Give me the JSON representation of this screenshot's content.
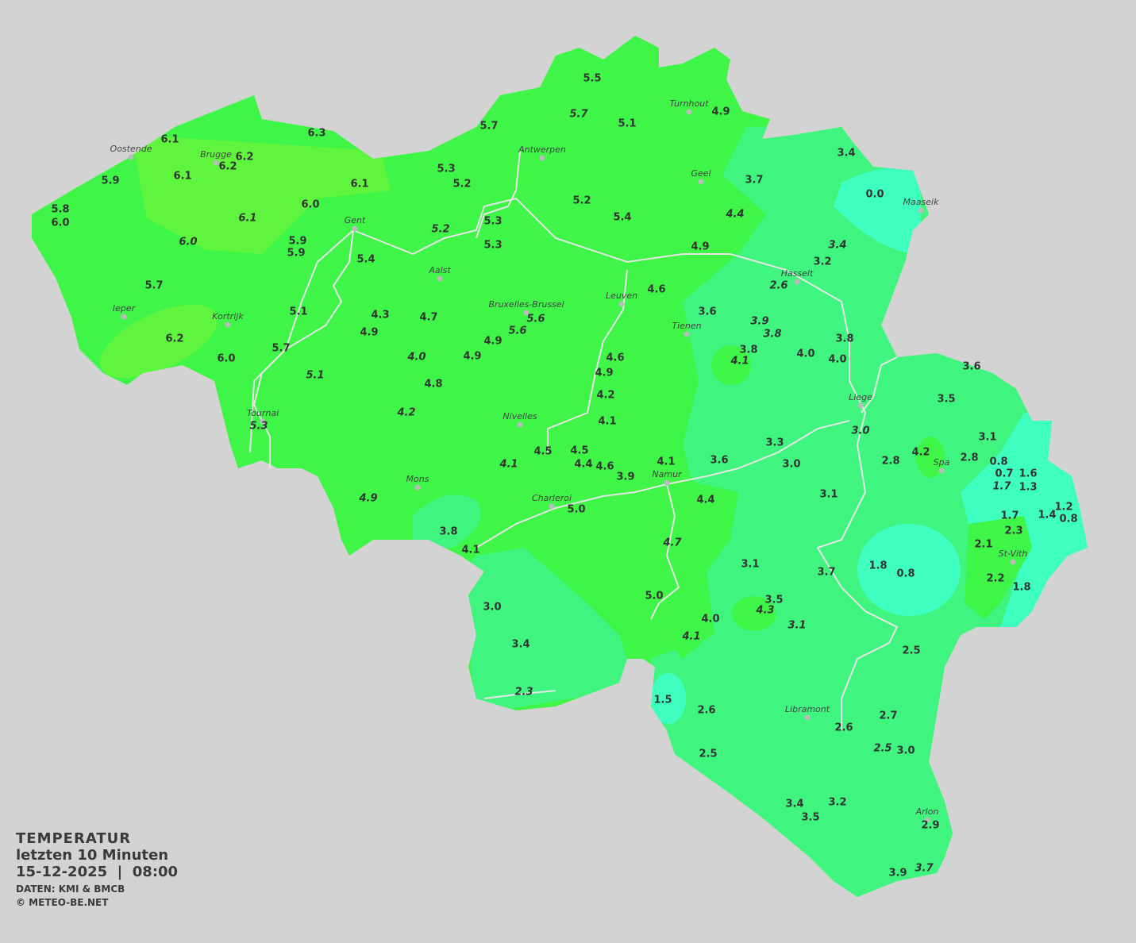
{
  "legend": {
    "title": "TEMPERATUR",
    "subtitle": "letzten 10 Minuten",
    "datetime": "15-12-2025  |  08:00",
    "source": "DATEN: KMI & BMCB",
    "copyright": "© METEO-BE.NET"
  },
  "colors": {
    "background": "#d3d3d3",
    "warm": "#5ff53f",
    "mild": "#3ef548",
    "cool": "#3ff57f",
    "cold": "#3fffc0",
    "rivers": "#e6e6e6"
  },
  "cities": [
    "Oostende",
    "Brugge",
    "Gent",
    "Antwerpen",
    "Turnhout",
    "Geel",
    "Maaseik",
    "Hasselt",
    "Aalst",
    "Leuven",
    "Bruxelles-Brussel",
    "Tienen",
    "Ieper",
    "Kortrijk",
    "Liege",
    "Tournai",
    "Nivelles",
    "Spa",
    "Mons",
    "Namur",
    "Charleroi",
    "St-Vith",
    "Libramont",
    "Arlon"
  ],
  "stations": [
    "5.5",
    "5.7",
    "5.7",
    "5.1",
    "4.9",
    "6.1",
    "6.3",
    "6.2",
    "6.2",
    "6.1",
    "5.9",
    "5.3",
    "5.2",
    "6.1",
    "3.4",
    "3.7",
    "0.0",
    "5.8",
    "6.0",
    "6.0",
    "5.2",
    "5.4",
    "4.4",
    "6.1",
    "5.3",
    "5.2",
    "6.0",
    "5.9",
    "5.9",
    "5.3",
    "4.9",
    "3.4",
    "5.4",
    "3.2",
    "2.6",
    "5.7",
    "4.6",
    "5.1",
    "4.3",
    "4.7",
    "3.6",
    "5.6",
    "3.9",
    "5.6",
    "3.8",
    "4.9",
    "4.9",
    "6.2",
    "3.8",
    "5.7",
    "3.8",
    "4.0",
    "4.9",
    "4.6",
    "4.0",
    "4.0",
    "6.0",
    "4.1",
    "3.6",
    "4.9",
    "5.1",
    "4.8",
    "4.2",
    "3.5",
    "4.2",
    "5.3",
    "4.1",
    "3.0",
    "3.1",
    "3.3",
    "4.5",
    "4.5",
    "4.2",
    "2.8",
    "2.8",
    "0.8",
    "3.6",
    "3.0",
    "4.1",
    "4.4",
    "4.6",
    "4.1",
    "0.7",
    "1.6",
    "3.9",
    "1.7",
    "1.3",
    "4.9",
    "3.1",
    "4.4",
    "5.0",
    "1.2",
    "1.7",
    "1.4",
    "0.8",
    "3.8",
    "2.3",
    "4.7",
    "4.1",
    "2.1",
    "3.1",
    "1.8",
    "3.7",
    "0.8",
    "2.2",
    "1.8",
    "5.0",
    "3.5",
    "4.3",
    "3.0",
    "4.0",
    "3.1",
    "4.1",
    "3.4",
    "2.5",
    "2.3",
    "1.5",
    "2.6",
    "2.7",
    "2.6",
    "2.5",
    "3.0",
    "2.5",
    "3.4",
    "3.2",
    "3.5",
    "2.9",
    "3.7",
    "3.9"
  ]
}
